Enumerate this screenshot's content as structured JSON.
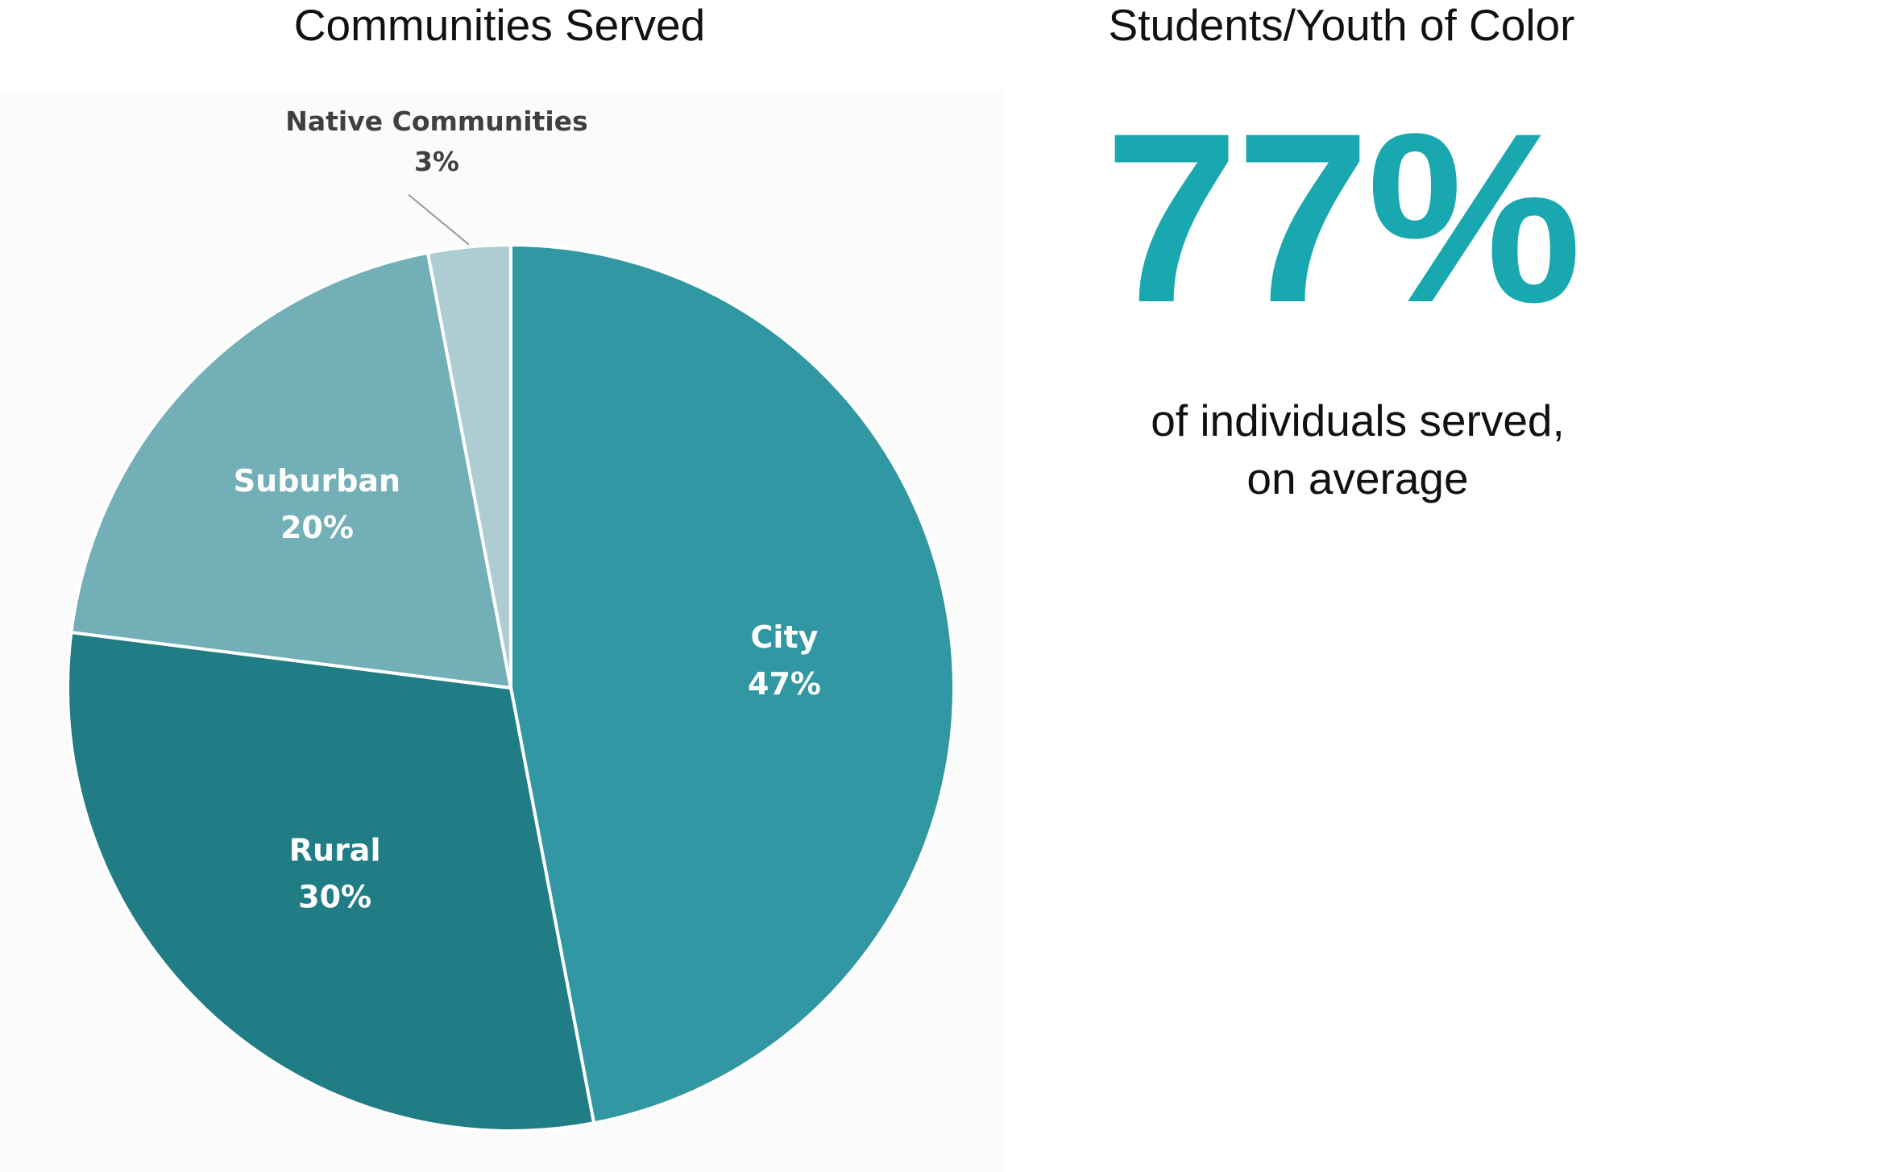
{
  "chart_data": [
    {
      "type": "pie",
      "title": "Communities Served",
      "slices": [
        {
          "label": "City",
          "value": 47,
          "value_label": "47%",
          "color": "#3197a2",
          "label_color": "#ffffff"
        },
        {
          "label": "Rural",
          "value": 30,
          "value_label": "30%",
          "color": "#217d85",
          "label_color": "#ffffff"
        },
        {
          "label": "Suburban",
          "value": 20,
          "value_label": "20%",
          "color": "#72afb6",
          "label_color": "#ffffff"
        },
        {
          "label": "Native Communities",
          "value": 3,
          "value_label": "3%",
          "color": "#adcdd3",
          "label_color": "#404040"
        }
      ]
    },
    {
      "type": "table",
      "title": "Students/Youth of Color",
      "value": 77,
      "value_label": "77%",
      "caption_lines": [
        "of individuals served,",
        "on average"
      ],
      "accent_color": "#1aa8b0"
    }
  ]
}
